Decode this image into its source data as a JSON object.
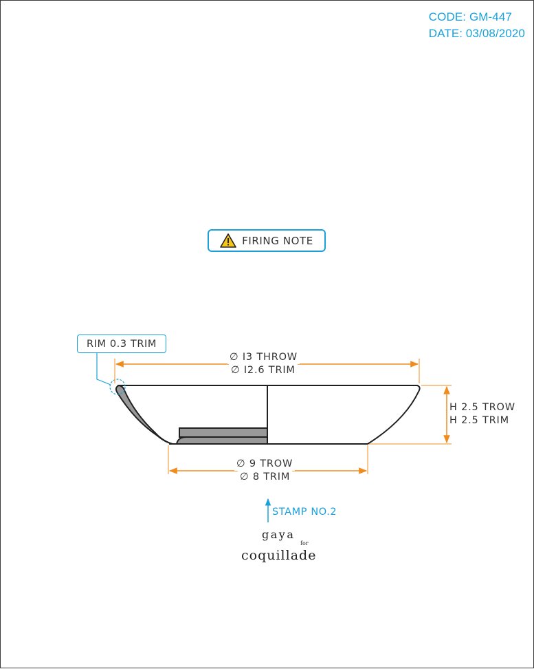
{
  "header": {
    "code_label": "CODE: GM-447",
    "date_label": "DATE: 03/08/2020"
  },
  "note": {
    "label": "FIRING NOTE",
    "icon": "warning-triangle-icon"
  },
  "rim": {
    "label": "RIM 0.3 TRIM"
  },
  "dimensions": {
    "top_diameter_throw": "∅ I3 THROW",
    "top_diameter_trim": "∅ I2.6 TRIM",
    "height_throw": "H 2.5 TROW",
    "height_trim": "H 2.5 TRIM",
    "foot_diameter_throw": "∅ 9 TROW",
    "foot_diameter_trim": "∅ 8 TRIM"
  },
  "stamp": {
    "label": "STAMP NO.2"
  },
  "logo": {
    "line1": "gaya",
    "small": "for",
    "line2": "coquillade"
  },
  "colors": {
    "accent": "#1aa0db",
    "dimension": "#f08c1e",
    "body_fill": "#999999",
    "outline": "#1f1f1f"
  }
}
